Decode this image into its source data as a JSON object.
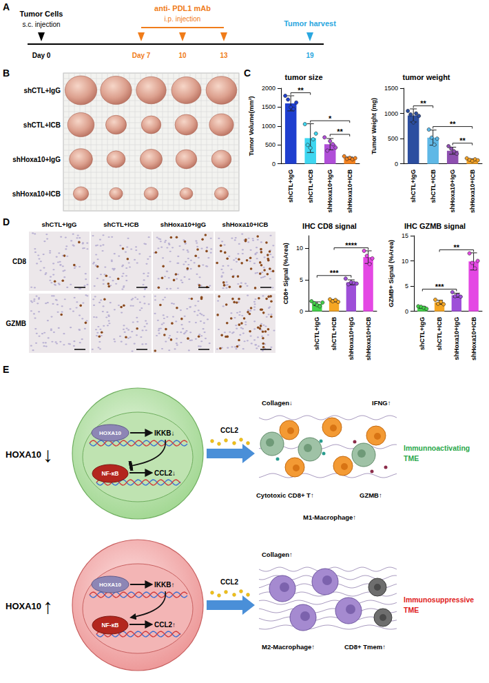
{
  "panel_letters": {
    "timeline": "A",
    "photo": "B",
    "bars": "C",
    "ihc": "D",
    "diagram": "E"
  },
  "timeline": {
    "events": [
      {
        "title": "Tumor Cells",
        "subtitle": "s.c. injection",
        "days": [
          "Day 0"
        ],
        "color": "#000000"
      },
      {
        "title": "anti- PDL1 mAb",
        "subtitle": "i.p. injection",
        "days": [
          "Day 7",
          "10",
          "13"
        ],
        "color": "#f07c1a"
      },
      {
        "title": "Tumor harvest",
        "days": [
          "19"
        ],
        "color": "#2aa7e0"
      }
    ]
  },
  "photo": {
    "rows": [
      "shCTL+IgG",
      "shCTL+ICB",
      "shHoxa10+IgG",
      "shHoxa10+ICB"
    ]
  },
  "ihc": {
    "columns": [
      "shCTL+IgG",
      "shCTL+ICB",
      "shHoxa10+IgG",
      "shHoxa10+ICB"
    ],
    "rows": [
      "CD8",
      "GZMB"
    ]
  },
  "chart_data": [
    {
      "type": "bar",
      "title": "tumor size",
      "y_label": "Tumor Volume(mm³)",
      "categories": [
        "shCTL+IgG",
        "shCTL+ICB",
        "shHoxa10+IgG",
        "shHoxa10+ICB"
      ],
      "values": [
        1600,
        680,
        520,
        150
      ],
      "errors": [
        200,
        380,
        150,
        30
      ],
      "points": [
        [
          1800,
          1700,
          1500,
          1450,
          1620
        ],
        [
          1050,
          500,
          420,
          650,
          800
        ],
        [
          700,
          350,
          600,
          520,
          430
        ],
        [
          200,
          130,
          160,
          120,
          150
        ]
      ],
      "colors": [
        "#1f3fcf",
        "#3ed6f0",
        "#b04ed8",
        "#f5831f"
      ],
      "significance": [
        {
          "from": "shCTL+IgG",
          "to": "shCTL+ICB",
          "label": "**"
        },
        {
          "from": "shCTL+ICB",
          "to": "shHoxa10+ICB",
          "label": "*"
        },
        {
          "from": "shHoxa10+IgG",
          "to": "shHoxa10+ICB",
          "label": "**"
        }
      ],
      "ylim": [
        0,
        2000
      ],
      "yticks": [
        0,
        500,
        1000,
        1500,
        2000
      ],
      "grid": false
    },
    {
      "type": "bar",
      "title": "tumor weight",
      "y_label": "Tumor Weight (mg)",
      "categories": [
        "shCTL+IgG",
        "shCTL+ICB",
        "shHoxa10+IgG",
        "shHoxa10+ICB"
      ],
      "values": [
        960,
        520,
        260,
        80
      ],
      "errors": [
        130,
        150,
        70,
        20
      ],
      "points": [
        [
          1050,
          980,
          820,
          1000,
          950
        ],
        [
          680,
          520,
          380,
          500
        ],
        [
          350,
          300,
          250,
          200
        ],
        [
          110,
          80,
          60,
          90,
          70
        ]
      ],
      "colors": [
        "#2c4ea0",
        "#5fb8e6",
        "#8e4fb0",
        "#f3a228"
      ],
      "significance": [
        {
          "from": "shCTL+IgG",
          "to": "shCTL+ICB",
          "label": "**"
        },
        {
          "from": "shCTL+ICB",
          "to": "shHoxa10+ICB",
          "label": "**"
        },
        {
          "from": "shHoxa10+IgG",
          "to": "shHoxa10+ICB",
          "label": "**"
        }
      ],
      "ylim": [
        0,
        1500
      ],
      "yticks": [
        0,
        500,
        1000,
        1500
      ],
      "grid": false
    },
    {
      "type": "bar",
      "title": "IHC CD8 signal",
      "y_label": "CD8+ Signal (%Area)",
      "categories": [
        "shCTL+IgG",
        "shCTL+ICB",
        "shHoxa10+IgG",
        "shHoxa10+ICB"
      ],
      "values": [
        1.2,
        1.7,
        4.6,
        8.6
      ],
      "errors": [
        0.3,
        0.2,
        0.4,
        1.0
      ],
      "points": [
        [
          1.6,
          1.3,
          1.0,
          0.8,
          1.4
        ],
        [
          1.9,
          1.6,
          1.8,
          1.5
        ],
        [
          5.2,
          4.3,
          4.6,
          4.5,
          4.4
        ],
        [
          9.6,
          8.8,
          7.5,
          8.4
        ]
      ],
      "colors": [
        "#44d14a",
        "#f5a623",
        "#9e4fd8",
        "#e448e4"
      ],
      "significance": [
        {
          "from": "shCTL+IgG",
          "to": "shHoxa10+IgG",
          "label": "***"
        },
        {
          "from": "shCTL+ICB",
          "to": "shHoxa10+ICB",
          "label": "****"
        }
      ],
      "ylim": [
        0,
        12
      ],
      "yticks": [
        0,
        5,
        10
      ],
      "grid": false
    },
    {
      "type": "bar",
      "title": "IHC GZMB signal",
      "y_label": "GZMB+ Signal (%Area)",
      "categories": [
        "shCTL+IgG",
        "shCTL+ICB",
        "shHoxa10+IgG",
        "shHoxa10+ICB"
      ],
      "values": [
        0.8,
        1.8,
        3.2,
        9.9
      ],
      "errors": [
        0.2,
        0.4,
        0.4,
        1.7
      ],
      "points": [
        [
          1.0,
          0.9,
          0.7,
          0.5
        ],
        [
          2.3,
          1.5,
          1.9,
          1.4
        ],
        [
          3.8,
          3.0,
          3.2,
          2.9
        ],
        [
          11.5,
          9.6,
          8.5,
          10.0
        ]
      ],
      "colors": [
        "#44d14a",
        "#f5a623",
        "#9e4fd8",
        "#e448e4"
      ],
      "significance": [
        {
          "from": "shCTL+IgG",
          "to": "shHoxa10+IgG",
          "label": "***"
        },
        {
          "from": "shCTL+ICB",
          "to": "shHoxa10+ICB",
          "label": "**"
        }
      ],
      "ylim": [
        0,
        15
      ],
      "yticks": [
        0,
        5,
        10,
        15
      ],
      "grid": false
    }
  ],
  "diagram": {
    "panels": [
      {
        "level_label": "HOXA10",
        "level": "↓",
        "factor": "HOXA10",
        "target": "IKKB↓",
        "tf": "NF-κB",
        "chemokine_gene": "CCL2↓",
        "secreted": "CCL2",
        "tme_labels": [
          "Collagen↓",
          "IFNG↑",
          "Cytotoxic CD8+ T↑",
          "GZMB↑",
          "M1-Macrophage↑"
        ],
        "tme": "Immunnoactivating TME",
        "color": "#2aa84a"
      },
      {
        "level_label": "HOXA10",
        "level": "↑",
        "factor": "HOXA10",
        "target": "IKKB↑",
        "tf": "NF-κB",
        "chemokine_gene": "CCL2↑",
        "secreted": "CCL2",
        "tme_labels": [
          "Collagen↑",
          "M2-Macrophage↑",
          "CD8+ Tmem↑"
        ],
        "tme": "Immunosuppressive TME",
        "color": "#e0201b"
      }
    ]
  }
}
